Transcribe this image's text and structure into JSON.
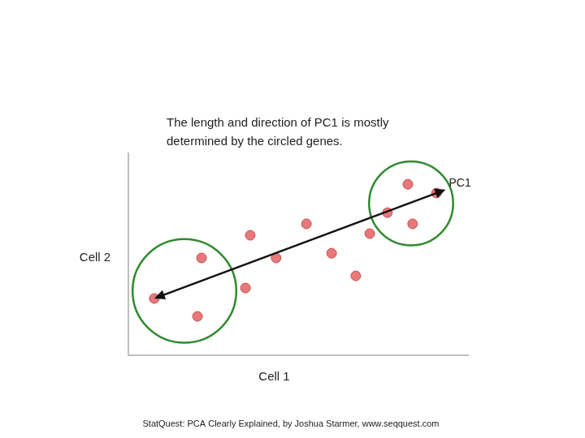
{
  "chart_data": {
    "type": "scatter",
    "title": [
      "The length and direction of PC1 is mostly",
      "determined by the circled genes."
    ],
    "x_label": "Cell 1",
    "y_label": "Cell 2",
    "annotation": "PC1",
    "caption": "StatQuest: PCA Clearly Explained, by Joshua Starmer, www.seqquest.com",
    "x": [
      0.76,
      2.03,
      2.15,
      3.44,
      3.58,
      4.34,
      5.23,
      5.97,
      6.68,
      7.09,
      7.61,
      8.21,
      8.35,
      9.05
    ],
    "values": [
      1.68,
      1.15,
      2.88,
      1.99,
      3.55,
      2.88,
      3.89,
      3.02,
      2.35,
      3.6,
      4.22,
      5.06,
      3.89,
      4.8
    ],
    "color": "#e8787a",
    "xlim": [
      0,
      10
    ],
    "ylim": [
      0,
      6
    ],
    "grid": false,
    "tick_labels": false
  }
}
